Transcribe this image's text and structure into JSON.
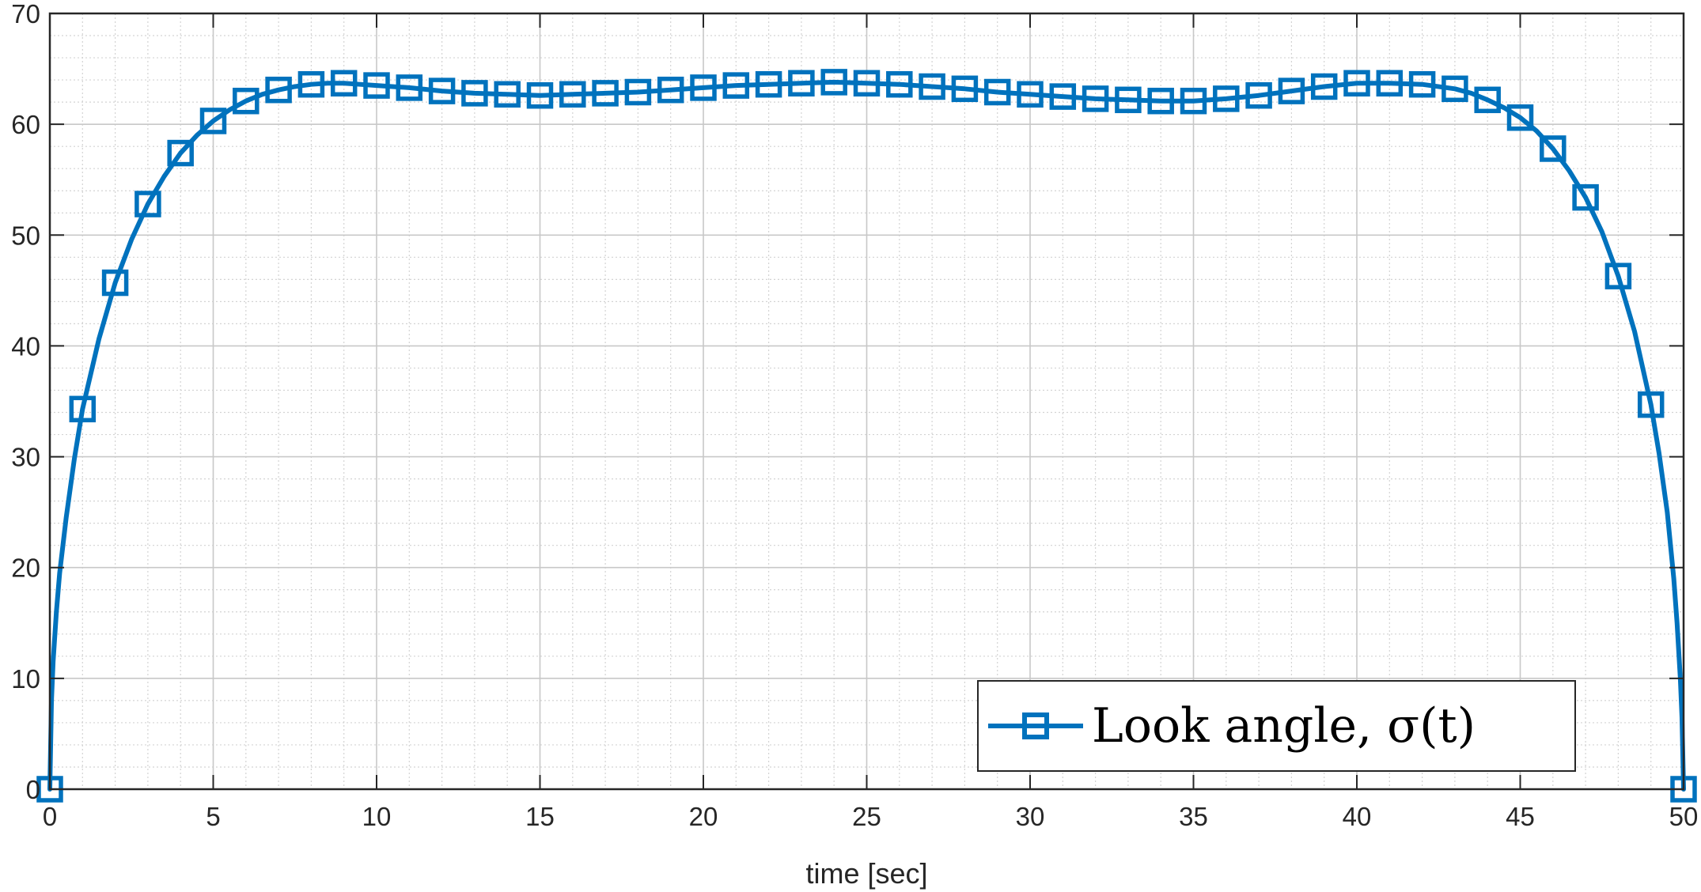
{
  "chart_data": {
    "type": "line",
    "title": "",
    "xlabel": "time [sec]",
    "ylabel": "",
    "xlim": [
      0,
      50
    ],
    "ylim": [
      0,
      70
    ],
    "xticks": [
      0,
      5,
      10,
      15,
      20,
      25,
      30,
      35,
      40,
      45,
      50
    ],
    "yticks": [
      0,
      10,
      20,
      30,
      40,
      50,
      60,
      70
    ],
    "grid": true,
    "minor_grid": true,
    "legend_position": "bottom-right",
    "series": [
      {
        "name": "Look angle, σ(t)",
        "color": "#0072BD",
        "marker": "square",
        "x": [
          0,
          1,
          2,
          3,
          4,
          5,
          6,
          7,
          8,
          9,
          10,
          11,
          12,
          13,
          14,
          15,
          16,
          17,
          18,
          19,
          20,
          21,
          22,
          23,
          24,
          25,
          26,
          27,
          28,
          29,
          30,
          31,
          32,
          33,
          34,
          35,
          36,
          37,
          38,
          39,
          40,
          41,
          42,
          43,
          44,
          45,
          46,
          47,
          48,
          49,
          50
        ],
        "y": [
          0,
          34.3,
          45.7,
          52.8,
          57.4,
          60.3,
          62.1,
          63.1,
          63.6,
          63.7,
          63.5,
          63.3,
          63.0,
          62.8,
          62.7,
          62.6,
          62.7,
          62.8,
          62.9,
          63.1,
          63.3,
          63.5,
          63.6,
          63.7,
          63.8,
          63.7,
          63.6,
          63.4,
          63.2,
          62.9,
          62.7,
          62.5,
          62.3,
          62.2,
          62.1,
          62.1,
          62.3,
          62.6,
          63.0,
          63.4,
          63.7,
          63.7,
          63.6,
          63.2,
          62.2,
          60.6,
          57.8,
          53.4,
          46.3,
          34.7,
          0
        ],
        "curve_x": [
          0,
          0.05,
          0.1,
          0.2,
          0.3,
          0.5,
          0.75,
          1,
          1.5,
          2,
          2.5,
          3,
          3.5,
          4,
          4.5,
          5,
          5.5,
          6,
          6.5,
          7,
          7.5,
          8,
          8.5,
          9,
          9.5,
          10,
          11,
          12,
          13,
          14,
          15,
          16,
          17,
          18,
          19,
          20,
          21,
          22,
          23,
          24,
          25,
          26,
          27,
          28,
          29,
          30,
          31,
          32,
          33,
          34,
          35,
          36,
          37,
          38,
          39,
          40,
          41,
          42,
          43,
          43.5,
          44,
          44.5,
          45,
          45.5,
          46,
          46.5,
          47,
          47.5,
          48,
          48.5,
          49,
          49.25,
          49.5,
          49.7,
          49.8,
          49.9,
          49.95,
          50
        ],
        "curve_y": [
          0,
          8,
          11.5,
          16,
          19.5,
          24.5,
          29.8,
          34.3,
          40.6,
          45.7,
          49.6,
          52.8,
          55.3,
          57.4,
          59.0,
          60.3,
          61.3,
          62.1,
          62.7,
          63.1,
          63.4,
          63.6,
          63.7,
          63.7,
          63.6,
          63.5,
          63.3,
          63.0,
          62.8,
          62.7,
          62.6,
          62.7,
          62.8,
          62.9,
          63.1,
          63.3,
          63.5,
          63.6,
          63.7,
          63.8,
          63.7,
          63.6,
          63.4,
          63.2,
          62.9,
          62.7,
          62.5,
          62.3,
          62.2,
          62.1,
          62.1,
          62.3,
          62.6,
          63.0,
          63.4,
          63.7,
          63.7,
          63.6,
          63.2,
          62.8,
          62.2,
          61.5,
          60.6,
          59.4,
          57.8,
          55.8,
          53.4,
          50.3,
          46.3,
          41.3,
          34.7,
          30.3,
          25.0,
          19.0,
          15.0,
          10.0,
          6.5,
          0
        ]
      }
    ]
  }
}
